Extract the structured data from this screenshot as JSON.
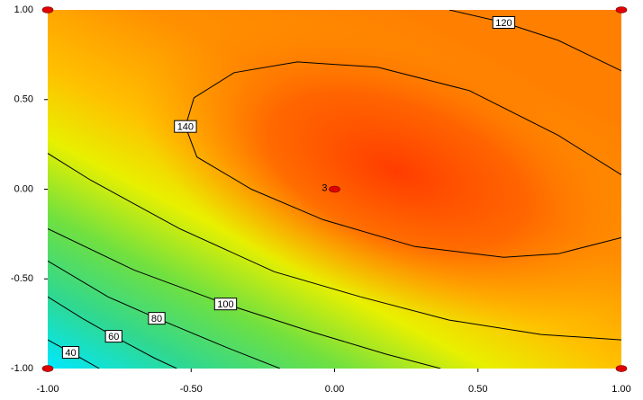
{
  "chart_data": {
    "type": "contour",
    "xlim": [
      -1,
      1
    ],
    "ylim": [
      -1,
      1
    ],
    "xticks": [
      {
        "value": -1,
        "label": "-1.00"
      },
      {
        "value": -0.5,
        "label": "-0.50"
      },
      {
        "value": 0,
        "label": "0.00"
      },
      {
        "value": 0.5,
        "label": "0.50"
      },
      {
        "value": 1,
        "label": "1.00"
      }
    ],
    "yticks": [
      {
        "value": -1,
        "label": "-1.00"
      },
      {
        "value": -0.5,
        "label": "-0.50"
      },
      {
        "value": 0,
        "label": "0.00"
      },
      {
        "value": 0.5,
        "label": "0.50"
      },
      {
        "value": 1,
        "label": "1.00"
      }
    ],
    "line_color": "#000000",
    "contours": [
      {
        "level": 140,
        "x": [
          1.0,
          0.78,
          0.59,
          0.28,
          -0.04,
          -0.29,
          -0.48,
          -0.52,
          -0.49,
          -0.35,
          -0.13,
          0.15,
          0.47,
          0.78,
          1.0
        ],
        "y": [
          -0.27,
          -0.36,
          -0.38,
          -0.32,
          -0.17,
          0.0,
          0.18,
          0.35,
          0.51,
          0.65,
          0.71,
          0.68,
          0.55,
          0.3,
          0.08
        ]
      },
      {
        "level": 120,
        "x": [
          0.4,
          0.59,
          0.78,
          1.0,
          null,
          -1.0,
          -0.85,
          -0.54,
          -0.21,
          0.09,
          0.4,
          0.72,
          1.0
        ],
        "y": [
          1.0,
          0.93,
          0.83,
          0.66,
          null,
          0.2,
          0.05,
          -0.22,
          -0.46,
          -0.6,
          -0.73,
          -0.81,
          -0.84
        ]
      },
      {
        "level": 100,
        "x": [
          -1.0,
          -0.7,
          -0.38,
          -0.07,
          0.18,
          0.37
        ],
        "y": [
          -0.22,
          -0.45,
          -0.64,
          -0.8,
          -0.92,
          -1.0
        ]
      },
      {
        "level": 80,
        "x": [
          -1.0,
          -0.79,
          -0.62,
          -0.38,
          -0.19
        ],
        "y": [
          -0.4,
          -0.6,
          -0.72,
          -0.88,
          -1.0
        ]
      },
      {
        "level": 60,
        "x": [
          -1.0,
          -0.88,
          -0.77,
          -0.63,
          -0.55
        ],
        "y": [
          -0.6,
          -0.72,
          -0.82,
          -0.94,
          -1.0
        ]
      },
      {
        "level": 40,
        "x": [
          -1.0,
          -0.92,
          -0.82
        ],
        "y": [
          -0.84,
          -0.91,
          -1.0
        ]
      }
    ],
    "design_points": {
      "color": "#e00000",
      "x": [
        -1,
        1,
        -1,
        1,
        0
      ],
      "y": [
        1,
        1,
        -1,
        -1,
        0
      ],
      "replicates": [
        null,
        null,
        null,
        null,
        3
      ]
    }
  }
}
